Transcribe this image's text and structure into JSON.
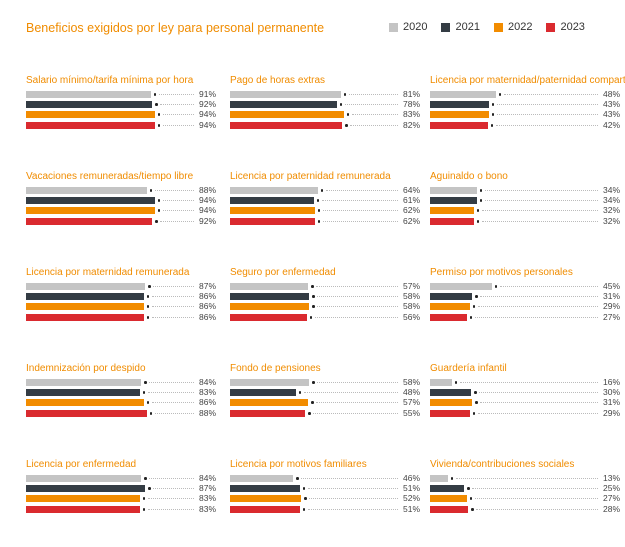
{
  "chart_data": {
    "type": "bar",
    "orientation": "horizontal",
    "layout": "small-multiples",
    "title": "Beneficios exigidos por ley para personal permanente",
    "unit": "%",
    "xlim": [
      0,
      100
    ],
    "grid": false,
    "legend_placement": "top-right",
    "series_names": [
      "2020",
      "2021",
      "2022",
      "2023"
    ],
    "colors": {
      "2020": "#c4c4c4",
      "2021": "#343c44",
      "2022": "#f28c00",
      "2023": "#da2a2f"
    },
    "panels": [
      {
        "title": "Salario mínimo/tarifa mínima por hora",
        "values": [
          91,
          92,
          94,
          94
        ]
      },
      {
        "title": "Pago de horas extras",
        "values": [
          81,
          78,
          83,
          82
        ]
      },
      {
        "title": "Licencia por maternidad/paternidad compartida",
        "values": [
          48,
          43,
          43,
          42
        ]
      },
      {
        "title": "Vacaciones remuneradas/tiempo libre",
        "values": [
          88,
          94,
          94,
          92
        ]
      },
      {
        "title": "Licencia por paternidad remunerada",
        "values": [
          64,
          61,
          62,
          62
        ]
      },
      {
        "title": "Aguinaldo o bono",
        "values": [
          34,
          34,
          32,
          32
        ]
      },
      {
        "title": "Licencia por maternidad remunerada",
        "values": [
          87,
          86,
          86,
          86
        ]
      },
      {
        "title": "Seguro por enfermedad",
        "values": [
          57,
          58,
          58,
          56
        ]
      },
      {
        "title": "Permiso por motivos personales",
        "values": [
          45,
          31,
          29,
          27
        ]
      },
      {
        "title": "Indemnización por despido",
        "values": [
          84,
          83,
          86,
          88
        ]
      },
      {
        "title": "Fondo de pensiones",
        "values": [
          58,
          48,
          57,
          55
        ]
      },
      {
        "title": "Guardería infantil",
        "values": [
          16,
          30,
          31,
          29
        ]
      },
      {
        "title": "Licencia por enfermedad",
        "values": [
          84,
          87,
          83,
          83
        ]
      },
      {
        "title": "Licencia por motivos familiares",
        "values": [
          46,
          51,
          52,
          51
        ]
      },
      {
        "title": "Vivienda/contribuciones sociales",
        "values": [
          13,
          25,
          27,
          28
        ]
      }
    ]
  }
}
